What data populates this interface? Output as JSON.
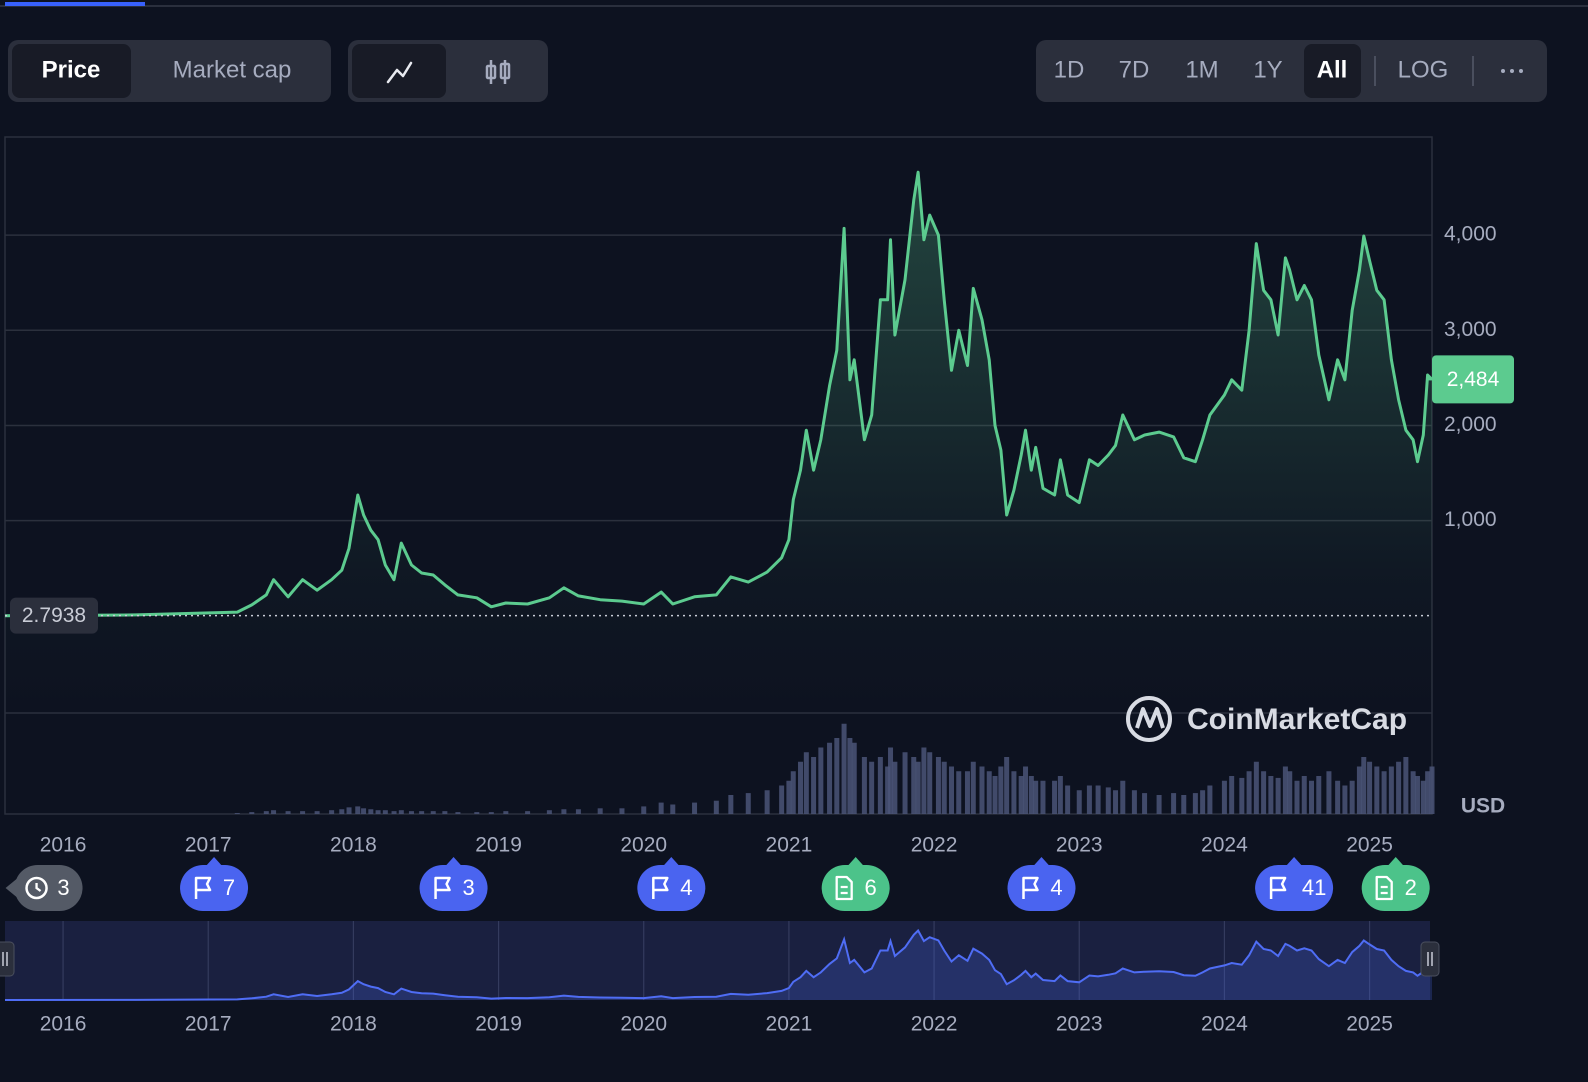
{
  "toolbar": {
    "metrics": [
      "Price",
      "Market cap"
    ],
    "ranges": [
      "1D",
      "7D",
      "1M",
      "1Y",
      "All"
    ],
    "scale": "LOG"
  },
  "chart_data": {
    "type": "line",
    "color": "#5ccb8f",
    "x": [
      2015.6,
      2016.5,
      2017.2,
      2017.3,
      2017.4,
      2017.45,
      2017.55,
      2017.65,
      2017.75,
      2017.85,
      2017.92,
      2017.97,
      2018.03,
      2018.07,
      2018.12,
      2018.17,
      2018.22,
      2018.28,
      2018.33,
      2018.4,
      2018.47,
      2018.55,
      2018.63,
      2018.72,
      2018.85,
      2018.95,
      2019.05,
      2019.2,
      2019.35,
      2019.45,
      2019.55,
      2019.7,
      2019.85,
      2020.0,
      2020.12,
      2020.2,
      2020.35,
      2020.5,
      2020.6,
      2020.72,
      2020.85,
      2020.95,
      2021.0,
      2021.03,
      2021.08,
      2021.12,
      2021.17,
      2021.22,
      2021.28,
      2021.33,
      2021.38,
      2021.42,
      2021.45,
      2021.52,
      2021.57,
      2021.63,
      2021.68,
      2021.7,
      2021.73,
      2021.8,
      2021.86,
      2021.89,
      2021.93,
      2021.97,
      2022.03,
      2022.07,
      2022.12,
      2022.17,
      2022.23,
      2022.27,
      2022.33,
      2022.38,
      2022.42,
      2022.46,
      2022.5,
      2022.55,
      2022.6,
      2022.63,
      2022.67,
      2022.7,
      2022.75,
      2022.83,
      2022.87,
      2022.92,
      2023.0,
      2023.07,
      2023.13,
      2023.2,
      2023.25,
      2023.3,
      2023.38,
      2023.45,
      2023.55,
      2023.65,
      2023.72,
      2023.8,
      2023.85,
      2023.9,
      2024.0,
      2024.05,
      2024.12,
      2024.17,
      2024.22,
      2024.27,
      2024.32,
      2024.37,
      2024.42,
      2024.45,
      2024.5,
      2024.55,
      2024.6,
      2024.65,
      2024.72,
      2024.78,
      2024.83,
      2024.88,
      2024.93,
      2024.96,
      2025.0,
      2025.05,
      2025.1,
      2025.15,
      2025.2,
      2025.25,
      2025.3,
      2025.33,
      2025.37,
      2025.4,
      2025.43
    ],
    "values": [
      1,
      10,
      40,
      115,
      220,
      380,
      200,
      380,
      270,
      380,
      480,
      710,
      1270,
      1060,
      900,
      800,
      535,
      380,
      765,
      535,
      450,
      430,
      325,
      220,
      190,
      95,
      135,
      125,
      190,
      295,
      210,
      170,
      155,
      125,
      250,
      125,
      200,
      220,
      410,
      355,
      460,
      610,
      800,
      1220,
      1530,
      1950,
      1530,
      1850,
      2420,
      2790,
      4070,
      2480,
      2690,
      1850,
      2110,
      3320,
      3320,
      3950,
      2950,
      3530,
      4370,
      4660,
      3950,
      4210,
      4000,
      3320,
      2580,
      3000,
      2630,
      3440,
      3110,
      2690,
      2000,
      1740,
      1060,
      1320,
      1690,
      1950,
      1530,
      1770,
      1340,
      1270,
      1640,
      1270,
      1190,
      1640,
      1580,
      1690,
      1790,
      2110,
      1850,
      1900,
      1930,
      1880,
      1660,
      1620,
      1850,
      2110,
      2320,
      2480,
      2370,
      3000,
      3910,
      3420,
      3320,
      2950,
      3760,
      3630,
      3320,
      3470,
      3320,
      2740,
      2270,
      2690,
      2480,
      3210,
      3630,
      3990,
      3730,
      3420,
      3320,
      2690,
      2270,
      1950,
      1850,
      1620,
      1900,
      2530,
      2484
    ],
    "volume": [
      0,
      0,
      1,
      2,
      3,
      4,
      3,
      3,
      3,
      4,
      5,
      7,
      8,
      6,
      5,
      4,
      4,
      3,
      4,
      3,
      3,
      3,
      3,
      2,
      2,
      2,
      3,
      3,
      4,
      5,
      5,
      6,
      6,
      8,
      12,
      10,
      12,
      14,
      20,
      22,
      25,
      30,
      35,
      45,
      55,
      65,
      60,
      70,
      75,
      80,
      95,
      80,
      75,
      60,
      55,
      60,
      50,
      70,
      55,
      65,
      60,
      55,
      70,
      65,
      60,
      55,
      50,
      45,
      45,
      55,
      50,
      45,
      40,
      50,
      60,
      45,
      40,
      50,
      40,
      35,
      35,
      35,
      40,
      30,
      25,
      30,
      30,
      28,
      25,
      35,
      25,
      22,
      20,
      22,
      20,
      22,
      25,
      30,
      35,
      40,
      38,
      45,
      55,
      45,
      40,
      38,
      50,
      45,
      35,
      40,
      35,
      40,
      45,
      35,
      30,
      35,
      50,
      60,
      55,
      50,
      45,
      50,
      55,
      60,
      45,
      40,
      35,
      45,
      50
    ],
    "volume_ylim": [
      0,
      100
    ],
    "volume_color": "#4b5578",
    "xlim": [
      2015.6,
      2025.43
    ],
    "ylim": [
      -1020,
      5030
    ],
    "xticks": [
      2016,
      2017,
      2018,
      2019,
      2020,
      2021,
      2022,
      2023,
      2024,
      2025
    ],
    "yticks": [
      {
        "value": 1000,
        "label": "1,000"
      },
      {
        "value": 2000,
        "label": "2,000"
      },
      {
        "value": 3000,
        "label": "3,000"
      },
      {
        "value": 4000,
        "label": "4,000"
      }
    ],
    "grid": true,
    "last_price": 2484,
    "last_price_label": "2,484",
    "reference": 2.7938,
    "currency": "USD",
    "watermark": "CoinMarketCap",
    "navigator_color": "#4f6df5",
    "events": [
      {
        "x": 2015.9,
        "label": "3",
        "kind": "history",
        "color": "#545a66"
      },
      {
        "x": 2017.04,
        "label": "7",
        "kind": "flag",
        "color": "#4a64f0"
      },
      {
        "x": 2018.69,
        "label": "3",
        "kind": "flag",
        "color": "#4a64f0"
      },
      {
        "x": 2020.19,
        "label": "4",
        "kind": "flag",
        "color": "#4a64f0"
      },
      {
        "x": 2021.46,
        "label": "6",
        "kind": "news",
        "color": "#4cc38a"
      },
      {
        "x": 2022.74,
        "label": "4",
        "kind": "flag",
        "color": "#4a64f0"
      },
      {
        "x": 2024.48,
        "label": "41",
        "kind": "flag",
        "color": "#4a64f0"
      },
      {
        "x": 2025.18,
        "label": "2",
        "kind": "news",
        "color": "#4cc38a"
      }
    ]
  }
}
